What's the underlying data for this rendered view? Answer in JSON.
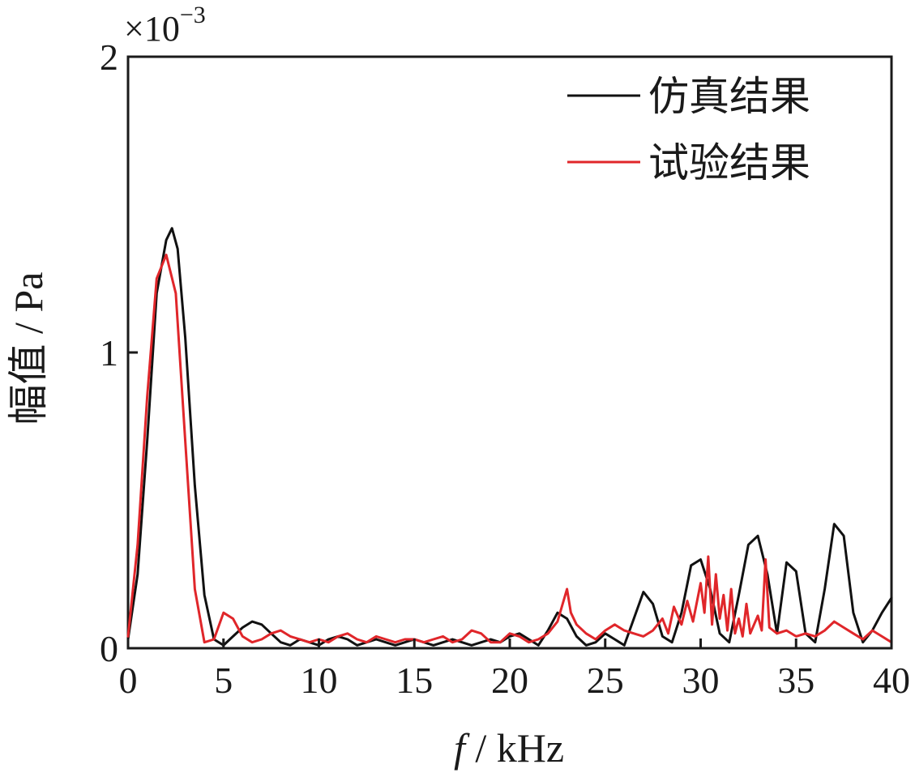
{
  "chart_data": {
    "type": "line",
    "title": "",
    "xlabel_italic": "f",
    "xlabel_rest": " / kHz",
    "ylabel": "幅值 / Pa",
    "multiplier_base": "×10",
    "multiplier_exp": "−3",
    "xlim": [
      0,
      40
    ],
    "ylim": [
      0,
      2
    ],
    "x_ticks": [
      0,
      5,
      10,
      15,
      20,
      25,
      30,
      35,
      40
    ],
    "y_ticks": [
      0,
      1,
      2
    ],
    "x_tick_labels": [
      "0",
      "5",
      "10",
      "15",
      "20",
      "25",
      "30",
      "35",
      "40"
    ],
    "y_tick_labels": [
      "0",
      "1",
      "2"
    ],
    "legend_position": "top-right",
    "series": [
      {
        "name": "仿真结果",
        "color": "#111111",
        "x": [
          0,
          0.5,
          1,
          1.5,
          2,
          2.3,
          2.6,
          3,
          3.5,
          4,
          4.5,
          5,
          5.5,
          6,
          6.5,
          7,
          7.5,
          8,
          8.5,
          9,
          9.5,
          10,
          10.5,
          11,
          11.5,
          12,
          12.5,
          13,
          13.5,
          14,
          14.5,
          15,
          15.5,
          16,
          16.5,
          17,
          17.5,
          18,
          18.5,
          19,
          19.5,
          20,
          20.5,
          21,
          21.5,
          22,
          22.5,
          23,
          23.5,
          24,
          24.5,
          25,
          25.5,
          26,
          26.5,
          27,
          27.5,
          28,
          28.5,
          29,
          29.5,
          30,
          30.5,
          31,
          31.5,
          32,
          32.5,
          33,
          33.5,
          34,
          34.5,
          35,
          35.5,
          36,
          36.5,
          37,
          37.5,
          38,
          38.5,
          39,
          39.5,
          40
        ],
        "values": [
          0.03,
          0.25,
          0.7,
          1.2,
          1.38,
          1.42,
          1.35,
          1.05,
          0.55,
          0.18,
          0.03,
          0.01,
          0.04,
          0.07,
          0.09,
          0.08,
          0.05,
          0.02,
          0.01,
          0.03,
          0.02,
          0.01,
          0.03,
          0.04,
          0.03,
          0.01,
          0.02,
          0.03,
          0.02,
          0.01,
          0.02,
          0.03,
          0.02,
          0.01,
          0.02,
          0.03,
          0.02,
          0.01,
          0.02,
          0.03,
          0.02,
          0.04,
          0.05,
          0.03,
          0.01,
          0.06,
          0.12,
          0.1,
          0.04,
          0.01,
          0.02,
          0.05,
          0.03,
          0.01,
          0.1,
          0.19,
          0.15,
          0.04,
          0.02,
          0.12,
          0.28,
          0.3,
          0.2,
          0.05,
          0.02,
          0.18,
          0.35,
          0.38,
          0.25,
          0.05,
          0.29,
          0.26,
          0.05,
          0.02,
          0.2,
          0.42,
          0.38,
          0.12,
          0.02,
          0.06,
          0.12,
          0.17
        ]
      },
      {
        "name": "试验结果",
        "color": "#e0262a",
        "x": [
          0,
          0.5,
          1,
          1.5,
          2,
          2.5,
          3,
          3.5,
          4,
          4.5,
          5,
          5.5,
          6,
          6.5,
          7,
          7.5,
          8,
          8.5,
          9,
          9.5,
          10,
          10.5,
          11,
          11.5,
          12,
          12.5,
          13,
          13.5,
          14,
          14.5,
          15,
          15.5,
          16,
          16.5,
          17,
          17.5,
          18,
          18.5,
          19,
          19.5,
          20,
          20.5,
          21,
          21.5,
          22,
          22.5,
          23,
          23.2,
          23.5,
          24,
          24.5,
          25,
          25.5,
          26,
          26.5,
          27,
          27.5,
          28,
          28.3,
          28.6,
          29,
          29.3,
          29.6,
          30,
          30.2,
          30.4,
          30.6,
          30.8,
          31,
          31.2,
          31.4,
          31.6,
          31.8,
          32,
          32.2,
          32.4,
          32.6,
          32.8,
          33,
          33.2,
          33.4,
          33.6,
          34,
          34.5,
          35,
          35.5,
          36,
          36.5,
          37,
          37.5,
          38,
          38.5,
          39,
          39.5,
          40
        ],
        "values": [
          0.04,
          0.35,
          0.85,
          1.25,
          1.33,
          1.2,
          0.7,
          0.2,
          0.02,
          0.03,
          0.12,
          0.1,
          0.04,
          0.02,
          0.03,
          0.05,
          0.06,
          0.04,
          0.03,
          0.02,
          0.03,
          0.02,
          0.04,
          0.05,
          0.03,
          0.02,
          0.04,
          0.03,
          0.02,
          0.03,
          0.03,
          0.02,
          0.03,
          0.04,
          0.02,
          0.03,
          0.06,
          0.05,
          0.02,
          0.02,
          0.05,
          0.04,
          0.02,
          0.03,
          0.05,
          0.09,
          0.2,
          0.12,
          0.08,
          0.05,
          0.03,
          0.06,
          0.08,
          0.06,
          0.05,
          0.04,
          0.06,
          0.1,
          0.05,
          0.14,
          0.08,
          0.16,
          0.09,
          0.22,
          0.12,
          0.31,
          0.08,
          0.25,
          0.1,
          0.18,
          0.06,
          0.2,
          0.05,
          0.1,
          0.04,
          0.15,
          0.05,
          0.08,
          0.11,
          0.06,
          0.3,
          0.07,
          0.05,
          0.06,
          0.04,
          0.05,
          0.04,
          0.06,
          0.09,
          0.07,
          0.05,
          0.03,
          0.06,
          0.04,
          0.02
        ]
      }
    ]
  }
}
